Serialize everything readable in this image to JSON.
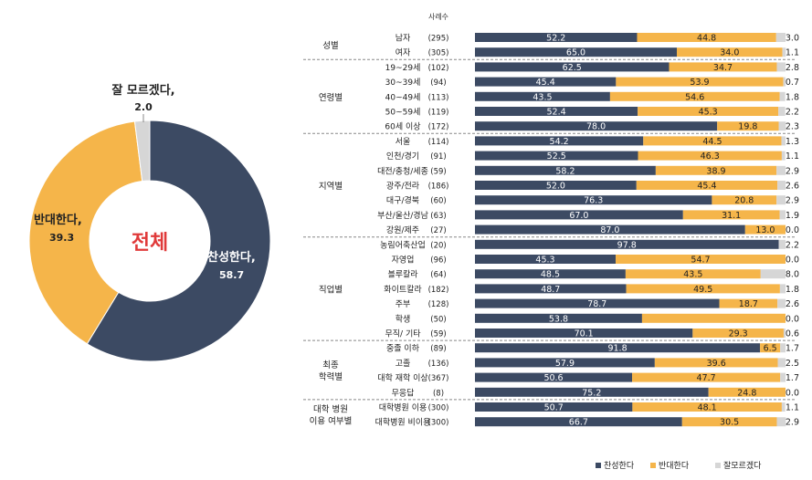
{
  "colors": {
    "yes": "#3c4a63",
    "no": "#f5b54a",
    "unsure": "#d6d6d6",
    "center_text": "#e03a3a"
  },
  "chart_data": [
    {
      "type": "pie",
      "title": "전체",
      "series": [
        {
          "name": "찬성한다,",
          "value": 58.7,
          "label": "58.7",
          "color_key": "yes"
        },
        {
          "name": "반대한다,",
          "value": 39.3,
          "label": "39.3",
          "color_key": "no"
        },
        {
          "name": "잘 모르겠다,",
          "value": 2.0,
          "label": "2.0",
          "color_key": "unsure"
        }
      ]
    },
    {
      "type": "bar",
      "stacked": true,
      "orientation": "horizontal",
      "n_header": "사례수",
      "legend": [
        "찬성한다",
        "반대한다",
        "잘모르겠다"
      ],
      "legend_position": "bottom-right",
      "xlim": [
        0,
        100
      ],
      "groups": [
        {
          "name": "성별",
          "rows": [
            {
              "label": "남자",
              "n": "(295)",
              "values": [
                52.2,
                44.8,
                3.0
              ]
            },
            {
              "label": "여자",
              "n": "(305)",
              "values": [
                65.0,
                34.0,
                1.1
              ]
            }
          ]
        },
        {
          "name": "연령별",
          "rows": [
            {
              "label": "19~29세",
              "n": "(102)",
              "values": [
                62.5,
                34.7,
                2.8
              ]
            },
            {
              "label": "30~39세",
              "n": "(94)",
              "values": [
                45.4,
                53.9,
                0.7
              ]
            },
            {
              "label": "40~49세",
              "n": "(113)",
              "values": [
                43.5,
                54.6,
                1.8
              ]
            },
            {
              "label": "50~59세",
              "n": "(119)",
              "values": [
                52.4,
                45.3,
                2.2
              ]
            },
            {
              "label": "60세 이상",
              "n": "(172)",
              "values": [
                78.0,
                19.8,
                2.3
              ]
            }
          ]
        },
        {
          "name": "지역별",
          "rows": [
            {
              "label": "서울",
              "n": "(114)",
              "values": [
                54.2,
                44.5,
                1.3
              ]
            },
            {
              "label": "인천/경기",
              "n": "(91)",
              "values": [
                52.5,
                46.3,
                1.1
              ]
            },
            {
              "label": "대전/충청/세종",
              "n": "(59)",
              "values": [
                58.2,
                38.9,
                2.9
              ]
            },
            {
              "label": "광주/전라",
              "n": "(186)",
              "values": [
                52.0,
                45.4,
                2.6
              ]
            },
            {
              "label": "대구/경북",
              "n": "(60)",
              "values": [
                76.3,
                20.8,
                2.9
              ]
            },
            {
              "label": "부산/울산/경남",
              "n": "(63)",
              "values": [
                67.0,
                31.1,
                1.9
              ]
            },
            {
              "label": "강원/제주",
              "n": "(27)",
              "values": [
                87.0,
                13.0,
                0.0
              ]
            }
          ]
        },
        {
          "name": "직업별",
          "rows": [
            {
              "label": "농림어축산업",
              "n": "(20)",
              "values": [
                97.8,
                0.0,
                2.2
              ]
            },
            {
              "label": "자영업",
              "n": "(96)",
              "values": [
                45.3,
                54.7,
                0.0
              ]
            },
            {
              "label": "블루칼라",
              "n": "(64)",
              "values": [
                48.5,
                43.5,
                8.0
              ]
            },
            {
              "label": "화이트칼라",
              "n": "(182)",
              "values": [
                48.7,
                49.5,
                1.8
              ]
            },
            {
              "label": "주부",
              "n": "(128)",
              "values": [
                78.7,
                18.7,
                2.6
              ]
            },
            {
              "label": "학생",
              "n": "(50)",
              "values": [
                53.8,
                46.2,
                0.0
              ]
            },
            {
              "label": "무직/ 기타",
              "n": "(59)",
              "values": [
                70.1,
                29.3,
                0.6
              ]
            }
          ]
        },
        {
          "name": "최종\n학력별",
          "rows": [
            {
              "label": "중졸 이하",
              "n": "(89)",
              "values": [
                91.8,
                6.5,
                1.7
              ]
            },
            {
              "label": "고졸",
              "n": "(136)",
              "values": [
                57.9,
                39.6,
                2.5
              ]
            },
            {
              "label": "대학 재학 이상",
              "n": "(367)",
              "values": [
                50.6,
                47.7,
                1.7
              ]
            },
            {
              "label": "무응답",
              "n": "(8)",
              "values": [
                75.2,
                24.8,
                0.0
              ]
            }
          ]
        },
        {
          "name": "대학 병원\n이용 여부별",
          "rows": [
            {
              "label": "대학병원 이용",
              "n": "(300)",
              "values": [
                50.7,
                48.1,
                1.1
              ]
            },
            {
              "label": "대학병원 비이용",
              "n": "(300)",
              "values": [
                66.7,
                30.5,
                2.9
              ]
            }
          ]
        }
      ],
      "value_labels": [
        [
          "52.2",
          "44.8",
          "3.0"
        ],
        [
          "65.0",
          "34.0",
          "1.1"
        ],
        [
          "62.5",
          "34.7",
          "2.8"
        ],
        [
          "45.4",
          "53.9",
          "0.7"
        ],
        [
          "43.5",
          "54.6",
          "1.8"
        ],
        [
          "52.4",
          "45.3",
          "2.2"
        ],
        [
          "78.0",
          "19.8",
          "2.3"
        ],
        [
          "54.2",
          "44.5",
          "1.3"
        ],
        [
          "52.5",
          "46.3",
          "1.1"
        ],
        [
          "58.2",
          "38.9",
          "2.9"
        ],
        [
          "52.0",
          "45.4",
          "2.6"
        ],
        [
          "76.3",
          "20.8",
          "2.9"
        ],
        [
          "67.0",
          "31.1",
          "1.9"
        ],
        [
          "87.0",
          "13.0",
          "0.0"
        ],
        [
          "97.8",
          "",
          "2.2"
        ],
        [
          "45.3",
          "54.7",
          "0.0"
        ],
        [
          "48.5",
          "43.5",
          "8.0"
        ],
        [
          "48.7",
          "49.5",
          "1.8"
        ],
        [
          "78.7",
          "18.7",
          "2.6"
        ],
        [
          "53.8",
          "",
          "0.0"
        ],
        [
          "70.1",
          "29.3",
          "0.6"
        ],
        [
          "91.8",
          "6.5",
          "1.7"
        ],
        [
          "57.9",
          "39.6",
          "2.5"
        ],
        [
          "50.6",
          "47.7",
          "1.7"
        ],
        [
          "75.2",
          "24.8",
          "0.0"
        ],
        [
          "50.7",
          "48.1",
          "1.1"
        ],
        [
          "66.7",
          "30.5",
          "2.9"
        ]
      ]
    }
  ]
}
